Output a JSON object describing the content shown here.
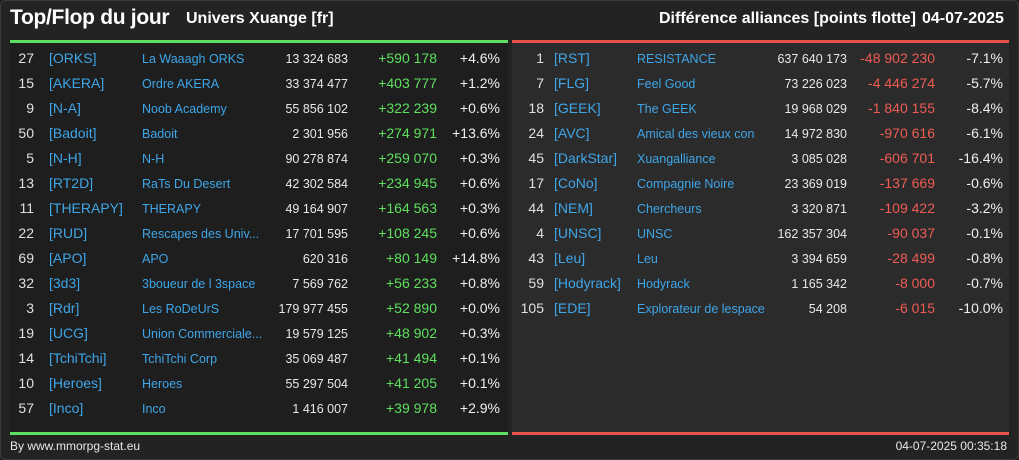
{
  "header": {
    "title": "Top/Flop du jour",
    "universe": "Univers Xuange [fr]",
    "subtitle": "Différence alliances [points flotte]",
    "date": "04-07-2025"
  },
  "colors": {
    "gain": "#5ee05e",
    "loss": "#ef5b55",
    "link": "#3fa6e8"
  },
  "top": [
    {
      "rank": "27",
      "tag": "[ORKS]",
      "name": "La Waaagh ORKS",
      "points": "13 324 683",
      "diff": "+590 178",
      "pct": "+4.6%"
    },
    {
      "rank": "15",
      "tag": "[AKERA]",
      "name": "Ordre AKERA",
      "points": "33 374 477",
      "diff": "+403 777",
      "pct": "+1.2%"
    },
    {
      "rank": "9",
      "tag": "[N-A]",
      "name": "Noob Academy",
      "points": "55 856 102",
      "diff": "+322 239",
      "pct": "+0.6%"
    },
    {
      "rank": "50",
      "tag": "[Badoit]",
      "name": "Badoit",
      "points": "2 301 956",
      "diff": "+274 971",
      "pct": "+13.6%"
    },
    {
      "rank": "5",
      "tag": "[N-H]",
      "name": "N-H",
      "points": "90 278 874",
      "diff": "+259 070",
      "pct": "+0.3%"
    },
    {
      "rank": "13",
      "tag": "[RT2D]",
      "name": "RaTs Du Desert",
      "points": "42 302 584",
      "diff": "+234 945",
      "pct": "+0.6%"
    },
    {
      "rank": "11",
      "tag": "[THERAPY]",
      "name": "THERAPY",
      "points": "49 164 907",
      "diff": "+164 563",
      "pct": "+0.3%"
    },
    {
      "rank": "22",
      "tag": "[RUD]",
      "name": "Rescapes des Univ...",
      "points": "17 701 595",
      "diff": "+108 245",
      "pct": "+0.6%"
    },
    {
      "rank": "69",
      "tag": "[APO]",
      "name": "APO",
      "points": "620 316",
      "diff": "+80 149",
      "pct": "+14.8%"
    },
    {
      "rank": "32",
      "tag": "[3d3]",
      "name": "3boueur de l 3space",
      "points": "7 569 762",
      "diff": "+56 233",
      "pct": "+0.8%"
    },
    {
      "rank": "3",
      "tag": "[Rdr]",
      "name": "Les RoDeUrS",
      "points": "179 977 455",
      "diff": "+52 890",
      "pct": "+0.0%"
    },
    {
      "rank": "19",
      "tag": "[UCG]",
      "name": "Union Commerciale...",
      "points": "19 579 125",
      "diff": "+48 902",
      "pct": "+0.3%"
    },
    {
      "rank": "14",
      "tag": "[TchiTchi]",
      "name": "TchiTchi Corp",
      "points": "35 069 487",
      "diff": "+41 494",
      "pct": "+0.1%"
    },
    {
      "rank": "10",
      "tag": "[Heroes]",
      "name": "Heroes",
      "points": "55 297 504",
      "diff": "+41 205",
      "pct": "+0.1%"
    },
    {
      "rank": "57",
      "tag": "[Inco]",
      "name": "Inco",
      "points": "1 416 007",
      "diff": "+39 978",
      "pct": "+2.9%"
    }
  ],
  "flop": [
    {
      "rank": "1",
      "tag": "[RST]",
      "name": "RESISTANCE",
      "points": "637 640 173",
      "diff": "-48 902 230",
      "pct": "-7.1%"
    },
    {
      "rank": "7",
      "tag": "[FLG]",
      "name": "Feel Good",
      "points": "73 226 023",
      "diff": "-4 446 274",
      "pct": "-5.7%"
    },
    {
      "rank": "18",
      "tag": "[GEEK]",
      "name": "The GEEK",
      "points": "19 968 029",
      "diff": "-1 840 155",
      "pct": "-8.4%"
    },
    {
      "rank": "24",
      "tag": "[AVC]",
      "name": "Amical des vieux con",
      "points": "14 972 830",
      "diff": "-970 616",
      "pct": "-6.1%"
    },
    {
      "rank": "45",
      "tag": "[DarkStar]",
      "name": "Xuangalliance",
      "points": "3 085 028",
      "diff": "-606 701",
      "pct": "-16.4%"
    },
    {
      "rank": "17",
      "tag": "[CoNo]",
      "name": "Compagnie Noire",
      "points": "23 369 019",
      "diff": "-137 669",
      "pct": "-0.6%"
    },
    {
      "rank": "44",
      "tag": "[NEM]",
      "name": "Chercheurs",
      "points": "3 320 871",
      "diff": "-109 422",
      "pct": "-3.2%"
    },
    {
      "rank": "4",
      "tag": "[UNSC]",
      "name": "UNSC",
      "points": "162 357 304",
      "diff": "-90 037",
      "pct": "-0.1%"
    },
    {
      "rank": "43",
      "tag": "[Leu]",
      "name": "Leu",
      "points": "3 394 659",
      "diff": "-28 499",
      "pct": "-0.8%"
    },
    {
      "rank": "59",
      "tag": "[Hodyrack]",
      "name": "Hodyrack",
      "points": "1 165 342",
      "diff": "-8 000",
      "pct": "-0.7%"
    },
    {
      "rank": "105",
      "tag": "[EDE]",
      "name": "Explorateur de lespace",
      "points": "54 208",
      "diff": "-6 015",
      "pct": "-10.0%"
    }
  ],
  "footer": {
    "credit": "By www.mmorpg-stat.eu",
    "timestamp": "04-07-2025 00:35:18"
  }
}
